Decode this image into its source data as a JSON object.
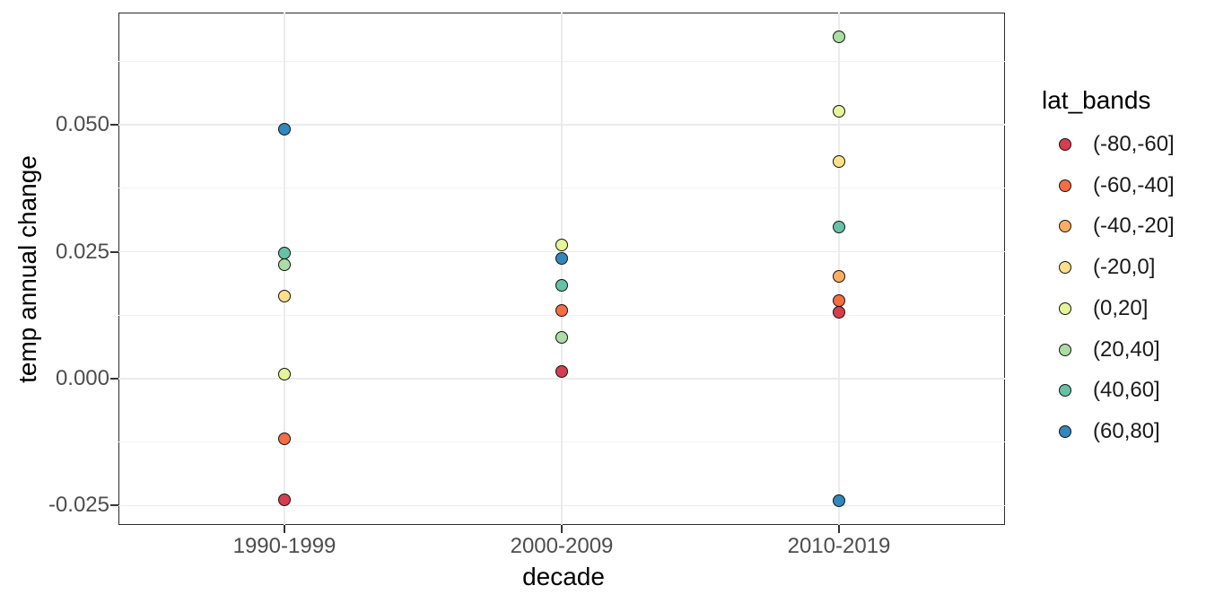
{
  "chart_data": {
    "type": "scatter",
    "title": "",
    "xlabel": "decade",
    "ylabel": "temp annual change",
    "legend_title": "lat_bands",
    "legend_position": "right",
    "grid": "major and minor horizontal, major vertical at categories",
    "categories": [
      "1990-1999",
      "2000-2009",
      "2010-2019"
    ],
    "ylim": [
      -0.0288,
      0.0721
    ],
    "y_major_ticks": [
      {
        "value": 0.05,
        "label": "0.050"
      },
      {
        "value": 0.025,
        "label": "0.025"
      },
      {
        "value": 0.0,
        "label": "0.000"
      },
      {
        "value": -0.025,
        "label": "-0.025"
      }
    ],
    "y_minor_ticks": [
      0.0625,
      0.0375,
      0.0125,
      -0.0125
    ],
    "series": [
      {
        "name": "(-80,-60]",
        "color": "#d53e4f",
        "values": [
          -0.0238,
          0.0014,
          0.0131
        ]
      },
      {
        "name": "(-60,-40]",
        "color": "#f46d43",
        "values": [
          -0.0118,
          0.0134,
          0.0154
        ]
      },
      {
        "name": "(-40,-20]",
        "color": "#fdae61",
        "values": [
          null,
          null,
          0.0202
        ]
      },
      {
        "name": "(-20,0]",
        "color": "#fee08b",
        "values": [
          0.0162,
          null,
          0.0427
        ]
      },
      {
        "name": "(0,20]",
        "color": "#e6f598",
        "values": [
          0.0009,
          0.0263,
          0.0526
        ]
      },
      {
        "name": "(20,40]",
        "color": "#abdda4",
        "values": [
          0.0224,
          0.0081,
          0.0673
        ]
      },
      {
        "name": "(40,60]",
        "color": "#66c2a5",
        "values": [
          0.0247,
          0.0183,
          0.0299
        ]
      },
      {
        "name": "(60,80]",
        "color": "#3288bd",
        "values": [
          0.0492,
          0.0237,
          -0.0241
        ]
      }
    ]
  },
  "colors": {
    "background": "#ffffff",
    "panel_border": "#2b2b2b",
    "grid_major": "#ebebeb",
    "grid_minor": "#f2f2f2",
    "tick_label": "#4d4d4d",
    "axis_title": "#000000"
  }
}
